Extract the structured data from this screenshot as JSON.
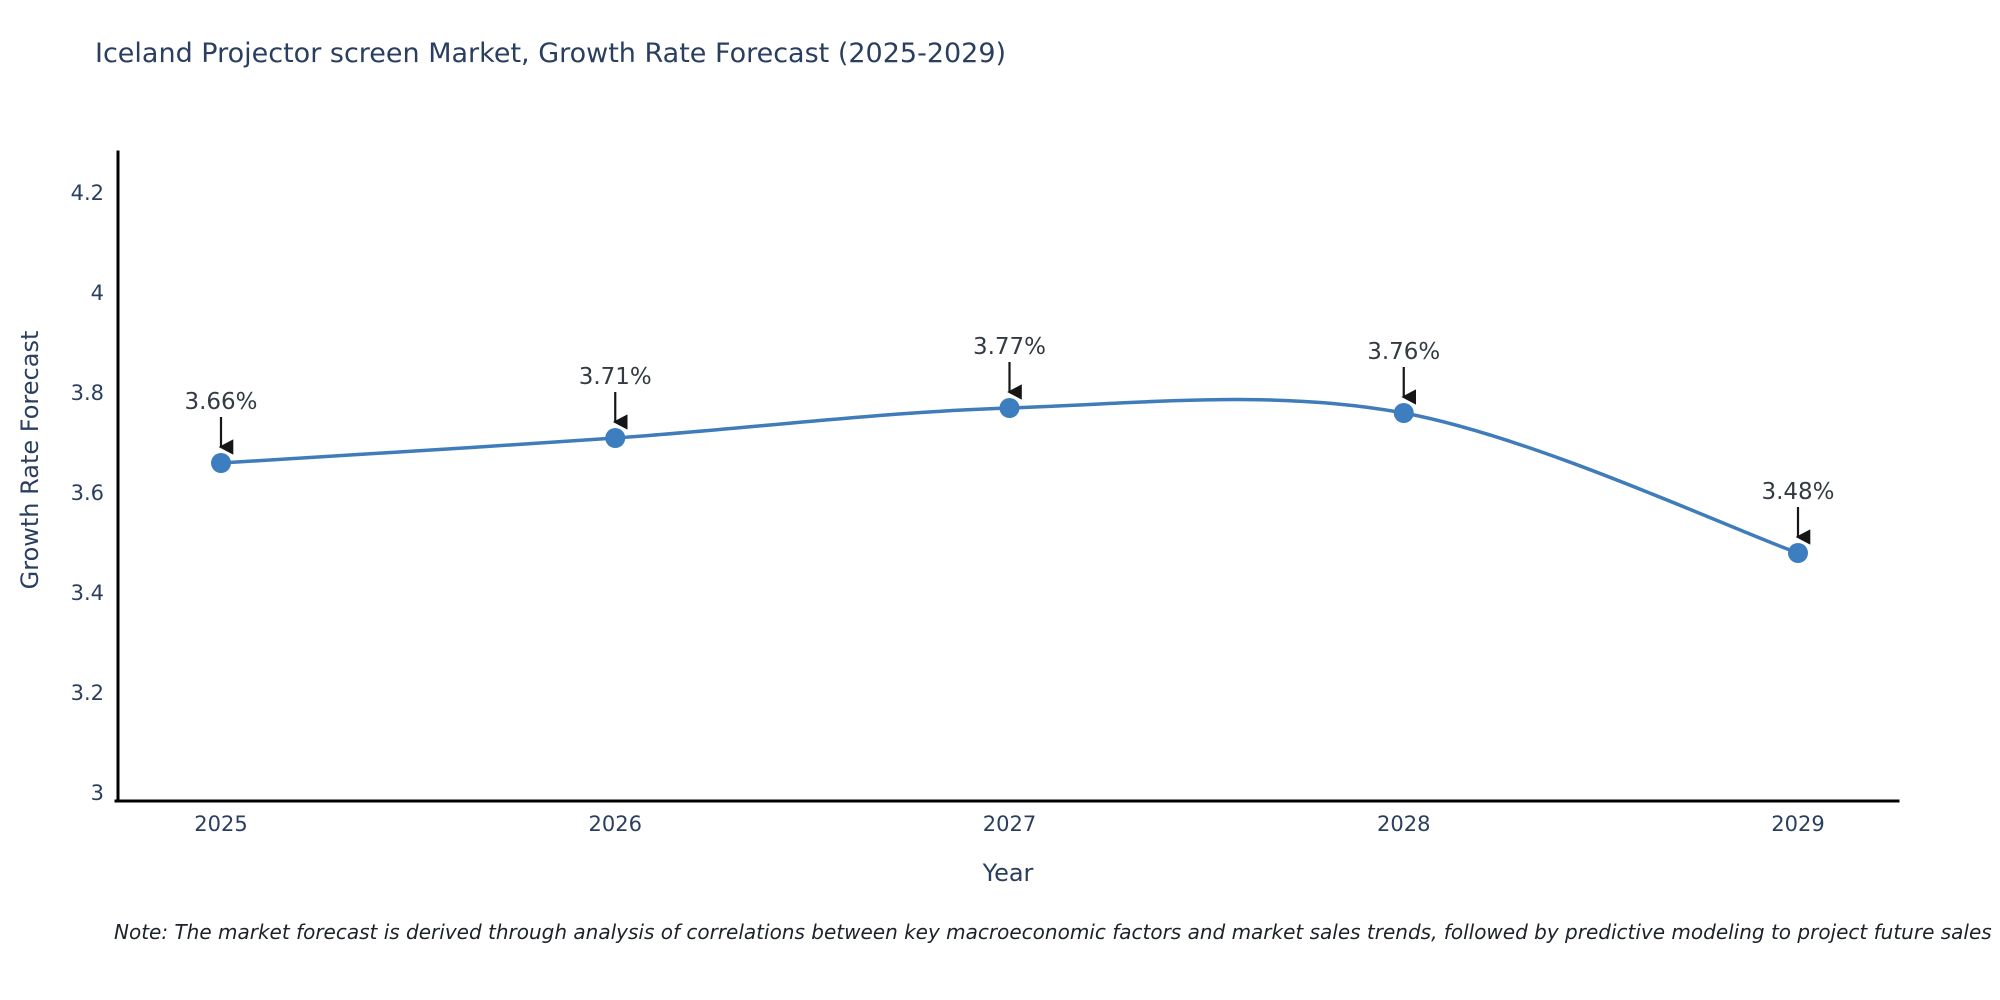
{
  "page": {
    "background": "#ffffff"
  },
  "chart_data": {
    "type": "line",
    "title": "Iceland Projector screen Market, Growth Rate Forecast (2025-2029)",
    "xlabel": "Year",
    "ylabel": "Growth Rate Forecast",
    "x": [
      2025,
      2026,
      2027,
      2028,
      2029
    ],
    "series": [
      {
        "name": "Growth Rate Forecast",
        "values": [
          3.66,
          3.71,
          3.77,
          3.76,
          3.48
        ]
      }
    ],
    "point_labels": [
      "3.66%",
      "3.71%",
      "3.77%",
      "3.76%",
      "3.48%"
    ],
    "xtick_labels": [
      "2025",
      "2026",
      "2027",
      "2028",
      "2029"
    ],
    "yticks": [
      3,
      3.2,
      3.4,
      3.6,
      3.8,
      4,
      4.2
    ],
    "ytick_labels": [
      "3",
      "3.2",
      "3.4",
      "3.6",
      "3.8",
      "4",
      "4.2"
    ],
    "ylim": [
      3,
      4.2
    ],
    "line_shape": "spline",
    "grid": false,
    "legend": "none",
    "colors": {
      "line": "#3f7cb9",
      "marker": "#3c7ebf",
      "axis": "#000000",
      "tick_text": "#2a3f5f",
      "annotation_text": "#333a44",
      "arrow": "#161616",
      "background": "#ffffff"
    }
  },
  "note": {
    "text": "Note: The market forecast is derived through analysis of correlations between key macroeconomic factors and market sales trends, followed by predictive modeling to project future sales"
  }
}
